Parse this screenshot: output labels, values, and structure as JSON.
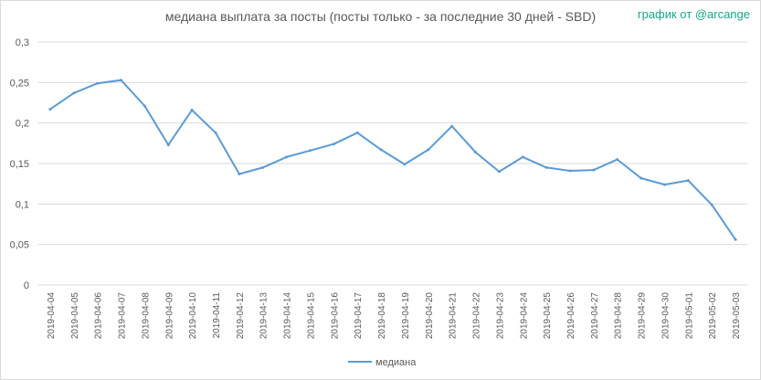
{
  "header": {
    "title": "медиана выплата за посты  (посты только - за последние 30 дней - SBD)",
    "credit": "график от @arcange"
  },
  "chart_data": {
    "type": "line",
    "title": "медиана выплата за посты  (посты только - за последние 30 дней - SBD)",
    "xlabel": "",
    "ylabel": "",
    "ylim": [
      0,
      0.3
    ],
    "yticks": [
      "0",
      "0,05",
      "0,1",
      "0,15",
      "0,2",
      "0,25",
      "0,3"
    ],
    "ytick_values": [
      0,
      0.05,
      0.1,
      0.15,
      0.2,
      0.25,
      0.3
    ],
    "grid": true,
    "legend_position": "bottom",
    "line_color": "#5b9bd5",
    "categories": [
      "2019-04-04",
      "2019-04-05",
      "2019-04-06",
      "2019-04-07",
      "2019-04-08",
      "2019-04-09",
      "2019-04-10",
      "2019-04-11",
      "2019-04-12",
      "2019-04-13",
      "2019-04-14",
      "2019-04-15",
      "2019-04-16",
      "2019-04-17",
      "2019-04-18",
      "2019-04-19",
      "2019-04-20",
      "2019-04-21",
      "2019-04-22",
      "2019-04-23",
      "2019-04-24",
      "2019-04-25",
      "2019-04-26",
      "2019-04-27",
      "2019-04-28",
      "2019-04-29",
      "2019-04-30",
      "2019-05-01",
      "2019-05-02",
      "2019-05-03"
    ],
    "series": [
      {
        "name": "медиана",
        "values": [
          0.217,
          0.237,
          0.249,
          0.253,
          0.221,
          0.173,
          0.216,
          0.188,
          0.137,
          0.145,
          0.158,
          0.166,
          0.174,
          0.188,
          0.167,
          0.149,
          0.167,
          0.196,
          0.164,
          0.14,
          0.158,
          0.145,
          0.141,
          0.142,
          0.155,
          0.132,
          0.124,
          0.129,
          0.099,
          0.056
        ]
      }
    ]
  }
}
